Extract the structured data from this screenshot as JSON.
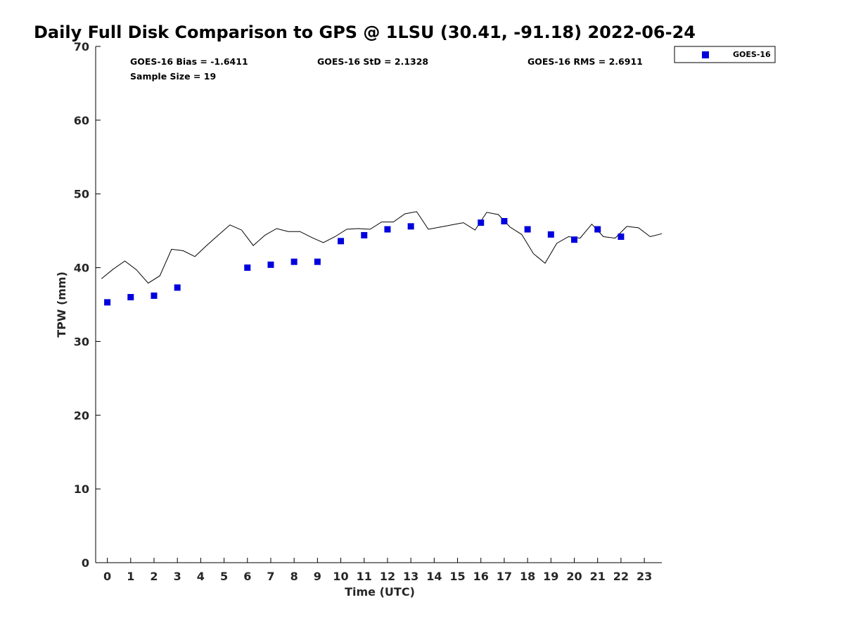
{
  "chart_data": {
    "type": "scatter",
    "title": "Daily Full Disk Comparison to GPS @ 1LSU (30.41, -91.18) 2022-06-24",
    "xlabel": "Time (UTC)",
    "ylabel": "TPW (mm)",
    "xlim": [
      -0.5,
      23.75
    ],
    "ylim": [
      0,
      70
    ],
    "x_ticks": [
      0,
      1,
      2,
      3,
      4,
      5,
      6,
      7,
      8,
      9,
      10,
      11,
      12,
      13,
      14,
      15,
      16,
      17,
      18,
      19,
      20,
      21,
      22,
      23
    ],
    "y_ticks": [
      0,
      10,
      20,
      30,
      40,
      50,
      60,
      70
    ],
    "grid": false,
    "legend_position": "top-right",
    "series": [
      {
        "name": "GOES-16",
        "kind": "scatter",
        "marker": "square",
        "color": "#0000dd",
        "x": [
          0,
          1,
          2,
          3,
          6,
          7,
          8,
          9,
          10,
          11,
          12,
          13,
          16,
          17,
          18,
          19,
          20,
          21,
          22
        ],
        "y": [
          35.3,
          36.0,
          36.2,
          37.3,
          40.0,
          40.4,
          40.8,
          40.8,
          43.6,
          44.4,
          45.2,
          45.6,
          46.1,
          46.3,
          45.2,
          44.5,
          43.8,
          45.2,
          44.2
        ]
      },
      {
        "kind": "line",
        "color": "#000000",
        "x": [
          -0.25,
          0.25,
          0.75,
          1.25,
          1.75,
          2.25,
          2.75,
          3.25,
          3.75,
          4.25,
          4.75,
          5.25,
          5.75,
          6.25,
          6.75,
          7.25,
          7.75,
          8.25,
          8.75,
          9.25,
          9.75,
          10.25,
          10.75,
          11.25,
          11.75,
          12.25,
          12.75,
          13.25,
          13.75,
          14.25,
          14.75,
          15.25,
          15.75,
          16.25,
          16.75,
          17.25,
          17.75,
          18.25,
          18.75,
          19.25,
          19.75,
          20.25,
          20.75,
          21.25,
          21.75,
          22.25,
          22.75,
          23.25,
          23.75
        ],
        "y": [
          38.5,
          39.8,
          40.9,
          39.7,
          37.9,
          38.9,
          42.5,
          42.3,
          41.5,
          43.0,
          44.4,
          45.8,
          45.1,
          43.0,
          44.4,
          45.3,
          44.9,
          44.9,
          44.1,
          43.4,
          44.2,
          45.2,
          45.3,
          45.2,
          46.2,
          46.2,
          47.3,
          47.6,
          45.2,
          45.5,
          45.8,
          46.1,
          45.1,
          47.5,
          47.2,
          45.5,
          44.5,
          41.9,
          40.6,
          43.3,
          44.2,
          44.0,
          45.9,
          44.2,
          44.0,
          45.6,
          45.4,
          44.2,
          44.6
        ]
      }
    ],
    "annotations": {
      "bias": "GOES-16 Bias = -1.6411",
      "std": "GOES-16 StD = 2.1328",
      "rms": "GOES-16 RMS = 2.6911",
      "sample": "Sample Size = 19"
    },
    "legend": {
      "label": "GOES-16"
    }
  }
}
